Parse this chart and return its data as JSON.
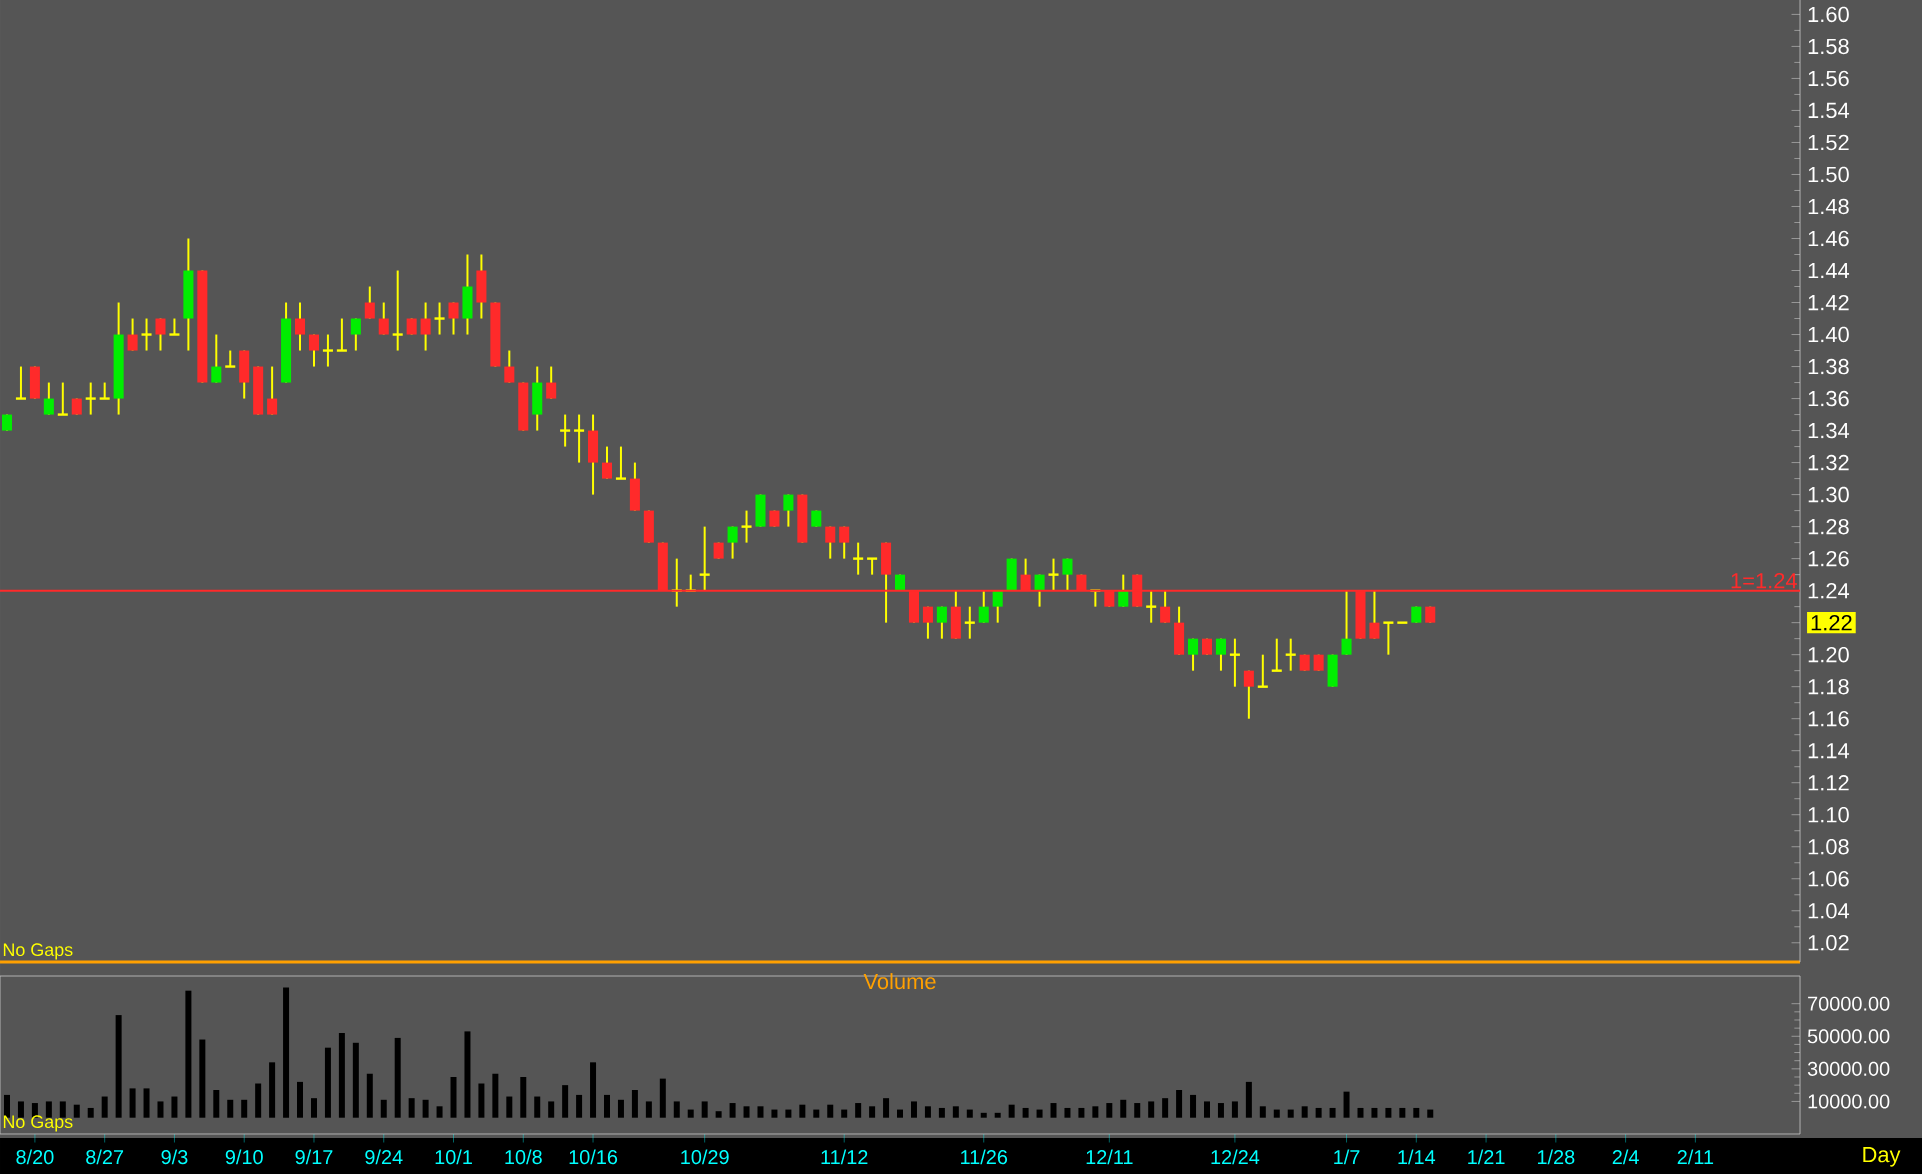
{
  "chart_data": [
    {
      "type": "candlestick",
      "ohlc": [
        [
          1.34,
          1.35,
          1.34,
          1.35
        ],
        [
          1.36,
          1.38,
          1.36,
          1.36
        ],
        [
          1.38,
          1.38,
          1.36,
          1.36
        ],
        [
          1.35,
          1.37,
          1.35,
          1.36
        ],
        [
          1.35,
          1.37,
          1.35,
          1.35
        ],
        [
          1.36,
          1.36,
          1.35,
          1.35
        ],
        [
          1.36,
          1.37,
          1.35,
          1.36
        ],
        [
          1.36,
          1.37,
          1.36,
          1.36
        ],
        [
          1.36,
          1.42,
          1.35,
          1.4
        ],
        [
          1.4,
          1.41,
          1.39,
          1.39
        ],
        [
          1.4,
          1.41,
          1.39,
          1.4
        ],
        [
          1.41,
          1.41,
          1.39,
          1.4
        ],
        [
          1.4,
          1.41,
          1.4,
          1.4
        ],
        [
          1.41,
          1.46,
          1.39,
          1.44
        ],
        [
          1.44,
          1.44,
          1.37,
          1.37
        ],
        [
          1.37,
          1.4,
          1.37,
          1.38
        ],
        [
          1.38,
          1.39,
          1.38,
          1.38
        ],
        [
          1.39,
          1.39,
          1.36,
          1.37
        ],
        [
          1.38,
          1.38,
          1.35,
          1.35
        ],
        [
          1.36,
          1.38,
          1.35,
          1.35
        ],
        [
          1.37,
          1.42,
          1.37,
          1.41
        ],
        [
          1.41,
          1.42,
          1.39,
          1.4
        ],
        [
          1.4,
          1.4,
          1.38,
          1.39
        ],
        [
          1.39,
          1.4,
          1.38,
          1.39
        ],
        [
          1.39,
          1.41,
          1.39,
          1.39
        ],
        [
          1.4,
          1.41,
          1.39,
          1.41
        ],
        [
          1.42,
          1.43,
          1.41,
          1.41
        ],
        [
          1.41,
          1.42,
          1.4,
          1.4
        ],
        [
          1.4,
          1.44,
          1.39,
          1.4
        ],
        [
          1.41,
          1.41,
          1.4,
          1.4
        ],
        [
          1.41,
          1.42,
          1.39,
          1.4
        ],
        [
          1.41,
          1.42,
          1.4,
          1.41
        ],
        [
          1.42,
          1.42,
          1.4,
          1.41
        ],
        [
          1.41,
          1.45,
          1.4,
          1.43
        ],
        [
          1.44,
          1.45,
          1.41,
          1.42
        ],
        [
          1.42,
          1.42,
          1.38,
          1.38
        ],
        [
          1.38,
          1.39,
          1.37,
          1.37
        ],
        [
          1.37,
          1.37,
          1.34,
          1.34
        ],
        [
          1.35,
          1.38,
          1.34,
          1.37
        ],
        [
          1.37,
          1.38,
          1.36,
          1.36
        ],
        [
          1.34,
          1.35,
          1.33,
          1.34
        ],
        [
          1.34,
          1.35,
          1.32,
          1.34
        ],
        [
          1.34,
          1.35,
          1.3,
          1.32
        ],
        [
          1.32,
          1.33,
          1.31,
          1.31
        ],
        [
          1.31,
          1.33,
          1.31,
          1.31
        ],
        [
          1.31,
          1.32,
          1.29,
          1.29
        ],
        [
          1.29,
          1.29,
          1.27,
          1.27
        ],
        [
          1.27,
          1.27,
          1.24,
          1.24
        ],
        [
          1.24,
          1.26,
          1.23,
          1.24
        ],
        [
          1.24,
          1.25,
          1.24,
          1.24
        ],
        [
          1.25,
          1.28,
          1.24,
          1.25
        ],
        [
          1.27,
          1.27,
          1.26,
          1.26
        ],
        [
          1.27,
          1.28,
          1.26,
          1.28
        ],
        [
          1.28,
          1.29,
          1.27,
          1.28
        ],
        [
          1.28,
          1.3,
          1.28,
          1.3
        ],
        [
          1.29,
          1.29,
          1.28,
          1.28
        ],
        [
          1.29,
          1.3,
          1.28,
          1.3
        ],
        [
          1.3,
          1.3,
          1.27,
          1.27
        ],
        [
          1.28,
          1.29,
          1.28,
          1.29
        ],
        [
          1.28,
          1.28,
          1.26,
          1.27
        ],
        [
          1.28,
          1.28,
          1.26,
          1.27
        ],
        [
          1.26,
          1.27,
          1.25,
          1.26
        ],
        [
          1.26,
          1.26,
          1.25,
          1.26
        ],
        [
          1.27,
          1.27,
          1.22,
          1.25
        ],
        [
          1.24,
          1.25,
          1.24,
          1.25
        ],
        [
          1.24,
          1.24,
          1.22,
          1.22
        ],
        [
          1.23,
          1.23,
          1.21,
          1.22
        ],
        [
          1.22,
          1.23,
          1.21,
          1.23
        ],
        [
          1.23,
          1.24,
          1.21,
          1.21
        ],
        [
          1.22,
          1.23,
          1.21,
          1.22
        ],
        [
          1.22,
          1.24,
          1.22,
          1.23
        ],
        [
          1.23,
          1.24,
          1.22,
          1.24
        ],
        [
          1.24,
          1.26,
          1.24,
          1.26
        ],
        [
          1.25,
          1.26,
          1.24,
          1.24
        ],
        [
          1.24,
          1.25,
          1.23,
          1.25
        ],
        [
          1.25,
          1.26,
          1.24,
          1.25
        ],
        [
          1.25,
          1.26,
          1.24,
          1.26
        ],
        [
          1.25,
          1.25,
          1.24,
          1.24
        ],
        [
          1.24,
          1.24,
          1.23,
          1.24
        ],
        [
          1.24,
          1.24,
          1.23,
          1.23
        ],
        [
          1.23,
          1.25,
          1.23,
          1.24
        ],
        [
          1.25,
          1.25,
          1.23,
          1.23
        ],
        [
          1.23,
          1.24,
          1.22,
          1.23
        ],
        [
          1.23,
          1.24,
          1.22,
          1.22
        ],
        [
          1.22,
          1.23,
          1.2,
          1.2
        ],
        [
          1.2,
          1.21,
          1.19,
          1.21
        ],
        [
          1.21,
          1.21,
          1.2,
          1.2
        ],
        [
          1.2,
          1.21,
          1.19,
          1.21
        ],
        [
          1.2,
          1.21,
          1.18,
          1.2
        ],
        [
          1.19,
          1.19,
          1.16,
          1.18
        ],
        [
          1.18,
          1.2,
          1.18,
          1.18
        ],
        [
          1.19,
          1.21,
          1.19,
          1.19
        ],
        [
          1.2,
          1.21,
          1.19,
          1.2
        ],
        [
          1.2,
          1.2,
          1.19,
          1.19
        ],
        [
          1.2,
          1.2,
          1.19,
          1.19
        ],
        [
          1.18,
          1.2,
          1.18,
          1.2
        ],
        [
          1.2,
          1.24,
          1.2,
          1.21
        ],
        [
          1.24,
          1.24,
          1.21,
          1.21
        ],
        [
          1.22,
          1.24,
          1.21,
          1.21
        ],
        [
          1.22,
          1.22,
          1.2,
          1.22
        ],
        [
          1.22,
          1.22,
          1.22,
          1.22
        ],
        [
          1.22,
          1.23,
          1.22,
          1.23
        ],
        [
          1.23,
          1.23,
          1.22,
          1.22
        ],
        null,
        null,
        null,
        null,
        null,
        null,
        null,
        null,
        null,
        null,
        null,
        null,
        null,
        null,
        null,
        null,
        null,
        null,
        null,
        null,
        null,
        null,
        null,
        null,
        null,
        null
      ],
      "colors": [
        "#00ee00",
        "#ffff00",
        "#ff2a2a",
        "#00ee00",
        "#ffff00",
        "#ff2a2a",
        "#ffff00",
        "#ffff00",
        "#00ee00",
        "#ff2a2a",
        "#ffff00",
        "#ff2a2a",
        "#ffff00",
        "#00ee00",
        "#ff2a2a",
        "#00ee00",
        "#ffff00",
        "#ff2a2a",
        "#ff2a2a",
        "#ff2a2a",
        "#00ee00",
        "#ff2a2a",
        "#ff2a2a",
        "#ffff00",
        "#ffff00",
        "#00ee00",
        "#ff2a2a",
        "#ff2a2a",
        "#ffff00",
        "#ff2a2a",
        "#ff2a2a",
        "#ffff00",
        "#ff2a2a",
        "#00ee00",
        "#ff2a2a",
        "#ff2a2a",
        "#ff2a2a",
        "#ff2a2a",
        "#00ee00",
        "#ff2a2a",
        "#ffff00",
        "#ffff00",
        "#ff2a2a",
        "#ff2a2a",
        "#ffff00",
        "#ff2a2a",
        "#ff2a2a",
        "#ff2a2a",
        "#ffff00",
        "#ffff00",
        "#ffff00",
        "#ff2a2a",
        "#00ee00",
        "#ffff00",
        "#00ee00",
        "#ff2a2a",
        "#00ee00",
        "#ff2a2a",
        "#00ee00",
        "#ff2a2a",
        "#ff2a2a",
        "#ffff00",
        "#ffff00",
        "#ff2a2a",
        "#00ee00",
        "#ff2a2a",
        "#ff2a2a",
        "#00ee00",
        "#ff2a2a",
        "#ffff00",
        "#00ee00",
        "#00ee00",
        "#00ee00",
        "#ff2a2a",
        "#00ee00",
        "#ffff00",
        "#00ee00",
        "#ff2a2a",
        "#ffff00",
        "#ff2a2a",
        "#00ee00",
        "#ff2a2a",
        "#ffff00",
        "#ff2a2a",
        "#ff2a2a",
        "#00ee00",
        "#ff2a2a",
        "#00ee00",
        "#ffff00",
        "#ff2a2a",
        "#ffff00",
        "#ffff00",
        "#ffff00",
        "#ff2a2a",
        "#ff2a2a",
        "#00ee00",
        "#00ee00",
        "#ff2a2a",
        "#ff2a2a",
        "#ffff00",
        "#ffff00",
        "#00ee00",
        "#ff2a2a",
        null,
        null,
        null,
        null,
        null,
        null,
        null,
        null,
        null,
        null,
        null,
        null,
        null,
        null,
        null,
        null,
        null,
        null,
        null,
        null,
        null,
        null,
        null,
        null,
        null,
        null
      ],
      "ylim": [
        1.008,
        1.609
      ],
      "yticks": [
        {
          "value": 1.02,
          "label": "1.02"
        },
        {
          "value": 1.04,
          "label": "1.04"
        },
        {
          "value": 1.06,
          "label": "1.06"
        },
        {
          "value": 1.08,
          "label": "1.08"
        },
        {
          "value": 1.1,
          "label": "1.10"
        },
        {
          "value": 1.12,
          "label": "1.12"
        },
        {
          "value": 1.14,
          "label": "1.14"
        },
        {
          "value": 1.16,
          "label": "1.16"
        },
        {
          "value": 1.18,
          "label": "1.18"
        },
        {
          "value": 1.2,
          "label": "1.20"
        },
        {
          "value": 1.22,
          "label": "1.22"
        },
        {
          "value": 1.24,
          "label": "1.24"
        },
        {
          "value": 1.26,
          "label": "1.26"
        },
        {
          "value": 1.28,
          "label": "1.28"
        },
        {
          "value": 1.3,
          "label": "1.30"
        },
        {
          "value": 1.32,
          "label": "1.32"
        },
        {
          "value": 1.34,
          "label": "1.34"
        },
        {
          "value": 1.36,
          "label": "1.36"
        },
        {
          "value": 1.38,
          "label": "1.38"
        },
        {
          "value": 1.4,
          "label": "1.40"
        },
        {
          "value": 1.42,
          "label": "1.42"
        },
        {
          "value": 1.44,
          "label": "1.44"
        },
        {
          "value": 1.46,
          "label": "1.46"
        },
        {
          "value": 1.48,
          "label": "1.48"
        },
        {
          "value": 1.5,
          "label": "1.50"
        },
        {
          "value": 1.52,
          "label": "1.52"
        },
        {
          "value": 1.54,
          "label": "1.54"
        },
        {
          "value": 1.56,
          "label": "1.56"
        },
        {
          "value": 1.58,
          "label": "1.58"
        },
        {
          "value": 1.6,
          "label": "1.60"
        }
      ],
      "ref_lines": [
        {
          "axis": "y",
          "value": 1.24,
          "label": "1=1.24",
          "color": "#ff2a2a"
        }
      ],
      "annotations": [
        "No Gaps"
      ],
      "tick_labels": "y"
    },
    {
      "type": "bar",
      "title": "Volume",
      "xlabel": "Day",
      "categories": [
        null,
        null,
        "8/20",
        null,
        null,
        null,
        null,
        "8/27",
        null,
        null,
        null,
        null,
        "9/3",
        null,
        null,
        null,
        null,
        "9/10",
        null,
        null,
        null,
        null,
        "9/17",
        null,
        null,
        null,
        null,
        "9/24",
        null,
        null,
        null,
        null,
        "10/1",
        null,
        null,
        null,
        null,
        "10/8",
        null,
        null,
        null,
        null,
        "10/16",
        null,
        null,
        null,
        null,
        null,
        null,
        null,
        "10/29",
        null,
        null,
        null,
        null,
        null,
        null,
        null,
        null,
        null,
        "11/12",
        null,
        null,
        null,
        null,
        null,
        null,
        null,
        null,
        null,
        "11/26",
        null,
        null,
        null,
        null,
        null,
        null,
        null,
        null,
        "12/11",
        null,
        null,
        null,
        null,
        null,
        null,
        null,
        null,
        "12/24",
        null,
        null,
        null,
        null,
        null,
        null,
        null,
        "1/7",
        null,
        null,
        null,
        null,
        "1/14",
        null,
        null,
        null,
        null,
        "1/21",
        null,
        null,
        null,
        null,
        "1/28",
        null,
        null,
        null,
        null,
        "2/4",
        null,
        null,
        null,
        null,
        "2/11",
        null,
        null,
        null,
        null,
        null,
        null,
        null
      ],
      "values": [
        14000,
        10000,
        9000,
        10000,
        10000,
        8000,
        6000,
        13000,
        63000,
        18000,
        18000,
        10000,
        13000,
        78000,
        48000,
        17000,
        11000,
        11000,
        21000,
        34000,
        80000,
        22000,
        12000,
        43000,
        52000,
        46000,
        27000,
        11000,
        49000,
        12000,
        11000,
        7000,
        25000,
        53000,
        21000,
        27000,
        13000,
        25000,
        13000,
        10000,
        20000,
        14000,
        34000,
        14000,
        11000,
        17000,
        10000,
        24000,
        10000,
        5000,
        10000,
        4000,
        9000,
        7000,
        7000,
        5000,
        5000,
        8000,
        5000,
        8000,
        5000,
        9000,
        7000,
        12000,
        5000,
        10000,
        7000,
        6000,
        7000,
        5000,
        3000,
        3000,
        8000,
        6000,
        5000,
        9000,
        6000,
        6000,
        7000,
        9000,
        11000,
        9000,
        10000,
        12000,
        17000,
        14000,
        10000,
        9000,
        10000,
        22000,
        7000,
        5000,
        5000,
        7000,
        6000,
        6000,
        16000,
        6000,
        6000,
        6000,
        6000,
        6000,
        5000,
        null,
        null,
        null,
        null,
        null,
        null,
        null,
        null,
        null,
        null,
        null,
        null,
        null,
        null,
        null,
        null,
        null,
        null,
        null,
        null,
        null,
        null,
        null,
        null,
        null,
        null
      ],
      "color": "#000000",
      "ylim": [
        -10000,
        87000
      ],
      "yticks": [
        {
          "value": 10000,
          "label": "10000.00"
        },
        {
          "value": 30000,
          "label": "30000.00"
        },
        {
          "value": 50000,
          "label": "50000.00"
        },
        {
          "value": 70000,
          "label": "70000.00"
        }
      ],
      "annotations": [
        "No Gaps"
      ]
    }
  ]
}
